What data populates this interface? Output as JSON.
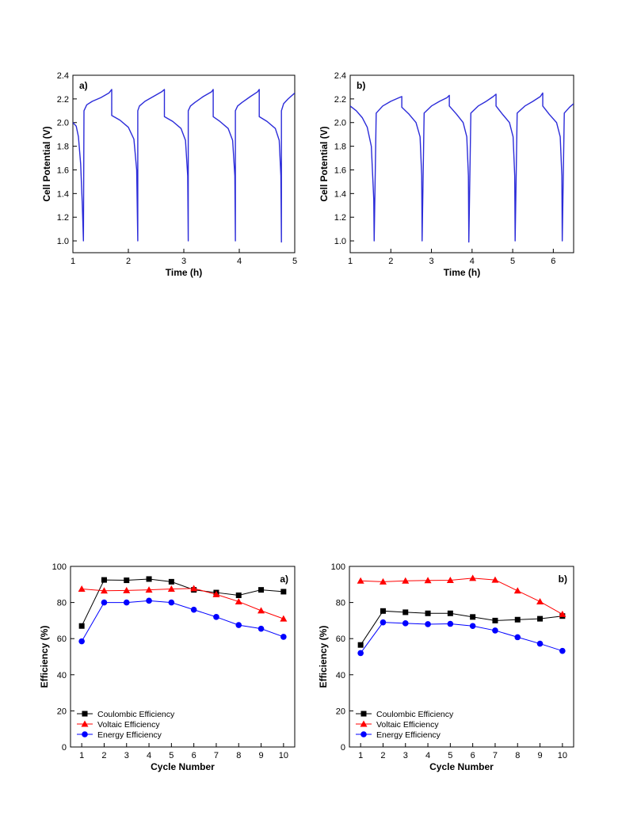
{
  "chart_data": [
    {
      "panel": "a)",
      "type": "line",
      "xlabel": "Time (h)",
      "ylabel": "Cell Potential (V)",
      "xlim": [
        1,
        5
      ],
      "ylim": [
        0.9,
        2.4
      ],
      "xticks": [
        1,
        2,
        3,
        4,
        5
      ],
      "xtick_labels": [
        "1",
        "2",
        "3",
        "4",
        "5"
      ],
      "yticks": [
        1.0,
        1.2,
        1.4,
        1.6,
        1.8,
        2.0,
        2.2,
        2.4
      ],
      "ytick_labels": [
        "1.0",
        "1.2",
        "1.4",
        "1.6",
        "1.8",
        "2.0",
        "2.2",
        "2.4"
      ],
      "series": [
        {
          "color": "#2b2bd9",
          "x": [
            1.0,
            1.06,
            1.1,
            1.14,
            1.17,
            1.19,
            1.2,
            1.25,
            1.35,
            1.5,
            1.65,
            1.7,
            1.7,
            1.85,
            2.0,
            2.1,
            2.15,
            2.17,
            2.17,
            2.2,
            2.3,
            2.45,
            2.6,
            2.65,
            2.65,
            2.8,
            2.95,
            3.03,
            3.07,
            3.08,
            3.08,
            3.12,
            3.2,
            3.35,
            3.5,
            3.53,
            3.53,
            3.65,
            3.8,
            3.88,
            3.92,
            3.93,
            3.93,
            3.97,
            4.05,
            4.2,
            4.33,
            4.36,
            4.36,
            4.5,
            4.65,
            4.72,
            4.75,
            4.76,
            4.76,
            4.8,
            4.88,
            5.0
          ],
          "y": [
            2.0,
            1.97,
            1.88,
            1.65,
            1.3,
            1.0,
            2.1,
            2.15,
            2.18,
            2.21,
            2.25,
            2.28,
            2.06,
            2.02,
            1.96,
            1.86,
            1.6,
            1.0,
            2.1,
            2.14,
            2.18,
            2.22,
            2.26,
            2.28,
            2.05,
            2.01,
            1.95,
            1.85,
            1.55,
            1.0,
            2.1,
            2.14,
            2.17,
            2.22,
            2.26,
            2.28,
            2.05,
            2.01,
            1.95,
            1.85,
            1.55,
            1.0,
            2.1,
            2.14,
            2.17,
            2.22,
            2.26,
            2.28,
            2.05,
            2.01,
            1.95,
            1.85,
            1.55,
            0.99,
            2.1,
            2.16,
            2.2,
            2.25
          ]
        }
      ]
    },
    {
      "panel": "b)",
      "type": "line",
      "xlabel": "Time (h)",
      "ylabel": "Cell Potential (V)",
      "xlim": [
        1,
        6.5
      ],
      "ylim": [
        0.9,
        2.4
      ],
      "xticks": [
        1,
        2,
        3,
        4,
        5,
        6
      ],
      "xtick_labels": [
        "1",
        "2",
        "3",
        "4",
        "5",
        "6"
      ],
      "yticks": [
        1.0,
        1.2,
        1.4,
        1.6,
        1.8,
        2.0,
        2.2,
        2.4
      ],
      "ytick_labels": [
        "1.0",
        "1.2",
        "1.4",
        "1.6",
        "1.8",
        "2.0",
        "2.2",
        "2.4"
      ],
      "series": [
        {
          "color": "#2b2bd9",
          "x": [
            1.0,
            1.15,
            1.3,
            1.42,
            1.52,
            1.58,
            1.59,
            1.64,
            1.8,
            2.0,
            2.2,
            2.27,
            2.27,
            2.45,
            2.62,
            2.72,
            2.76,
            2.77,
            2.82,
            3.0,
            3.2,
            3.38,
            3.44,
            3.44,
            3.62,
            3.78,
            3.87,
            3.91,
            3.92,
            3.97,
            4.15,
            4.35,
            4.52,
            4.59,
            4.59,
            4.75,
            4.92,
            5.01,
            5.05,
            5.06,
            5.11,
            5.3,
            5.5,
            5.68,
            5.74,
            5.74,
            5.9,
            6.08,
            6.17,
            6.21,
            6.22,
            6.27,
            6.4,
            6.5
          ],
          "y": [
            2.14,
            2.1,
            2.04,
            1.96,
            1.8,
            1.35,
            1.0,
            2.08,
            2.14,
            2.18,
            2.21,
            2.22,
            2.13,
            2.07,
            2.0,
            1.88,
            1.55,
            1.0,
            2.08,
            2.14,
            2.18,
            2.21,
            2.23,
            2.14,
            2.07,
            2.0,
            1.88,
            1.55,
            0.99,
            2.08,
            2.14,
            2.18,
            2.22,
            2.24,
            2.14,
            2.07,
            2.0,
            1.88,
            1.55,
            1.0,
            2.08,
            2.14,
            2.18,
            2.22,
            2.25,
            2.14,
            2.07,
            2.0,
            1.88,
            1.55,
            1.0,
            2.08,
            2.13,
            2.16
          ]
        }
      ]
    },
    {
      "panel": "a)",
      "type": "line",
      "xlabel": "Cycle Number",
      "ylabel": "Efficiency (%)",
      "xlim": [
        0.5,
        10.5
      ],
      "ylim": [
        0,
        100
      ],
      "xticks": [
        1,
        2,
        3,
        4,
        5,
        6,
        7,
        8,
        9,
        10
      ],
      "xtick_labels": [
        "1",
        "2",
        "3",
        "4",
        "5",
        "6",
        "7",
        "8",
        "9",
        "10"
      ],
      "yticks": [
        0,
        20,
        40,
        60,
        80,
        100
      ],
      "ytick_labels": [
        "0",
        "20",
        "40",
        "60",
        "80",
        "100"
      ],
      "legend_position": "bottom-left",
      "categories": [
        1,
        2,
        3,
        4,
        5,
        6,
        7,
        8,
        9,
        10
      ],
      "series": [
        {
          "name": "Coulombic Efficiency",
          "color": "#000000",
          "marker": "square",
          "values": [
            67,
            92.5,
            92.3,
            93,
            91.5,
            87,
            85.5,
            84,
            87,
            86
          ]
        },
        {
          "name": "Voltaic Efficiency",
          "color": "#ff0000",
          "marker": "triangle",
          "values": [
            87.5,
            86.5,
            86.7,
            87,
            87.5,
            87.8,
            84.5,
            80.5,
            75.5,
            71
          ]
        },
        {
          "name": "Energy Efficiency",
          "color": "#0000ff",
          "marker": "circle",
          "values": [
            58.5,
            80,
            80,
            81,
            80,
            76,
            72,
            67.5,
            65.5,
            61
          ]
        }
      ]
    },
    {
      "panel": "b)",
      "type": "line",
      "xlabel": "Cycle Number",
      "ylabel": "Efficiency (%)",
      "xlim": [
        0.5,
        10.5
      ],
      "ylim": [
        0,
        100
      ],
      "xticks": [
        1,
        2,
        3,
        4,
        5,
        6,
        7,
        8,
        9,
        10
      ],
      "xtick_labels": [
        "1",
        "2",
        "3",
        "4",
        "5",
        "6",
        "7",
        "8",
        "9",
        "10"
      ],
      "yticks": [
        0,
        20,
        40,
        60,
        80,
        100
      ],
      "ytick_labels": [
        "0",
        "20",
        "40",
        "60",
        "80",
        "100"
      ],
      "legend_position": "bottom-left",
      "categories": [
        1,
        2,
        3,
        4,
        5,
        6,
        7,
        8,
        9,
        10
      ],
      "series": [
        {
          "name": "Coulombic Efficiency",
          "color": "#000000",
          "marker": "square",
          "values": [
            56.5,
            75.3,
            74.6,
            74,
            74,
            72,
            70,
            70.5,
            71,
            72.5
          ]
        },
        {
          "name": "Voltaic Efficiency",
          "color": "#ff0000",
          "marker": "triangle",
          "values": [
            92,
            91.5,
            92,
            92.2,
            92.3,
            93.5,
            92.5,
            86.5,
            80.5,
            73.5
          ]
        },
        {
          "name": "Energy Efficiency",
          "color": "#0000ff",
          "marker": "circle",
          "values": [
            52,
            69,
            68.5,
            68,
            68.2,
            67,
            64.5,
            60.8,
            57.2,
            53.2
          ]
        }
      ]
    }
  ]
}
